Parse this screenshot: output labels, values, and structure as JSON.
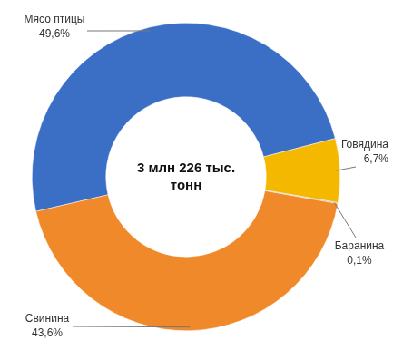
{
  "chart_data": {
    "type": "doughnut",
    "categories": [
      "Мясо птицы",
      "Говядина",
      "Баранина",
      "Свинина"
    ],
    "values": [
      49.6,
      6.7,
      0.1,
      43.6
    ],
    "value_labels": [
      "49,6%",
      "6,7%",
      "0,1%",
      "43,6%"
    ],
    "colors": [
      "#3b6fc6",
      "#f5b800",
      "#9e9e9e",
      "#f0892a"
    ],
    "data_labels": true,
    "center_text": "3 млн 226 тыс. тонн"
  }
}
